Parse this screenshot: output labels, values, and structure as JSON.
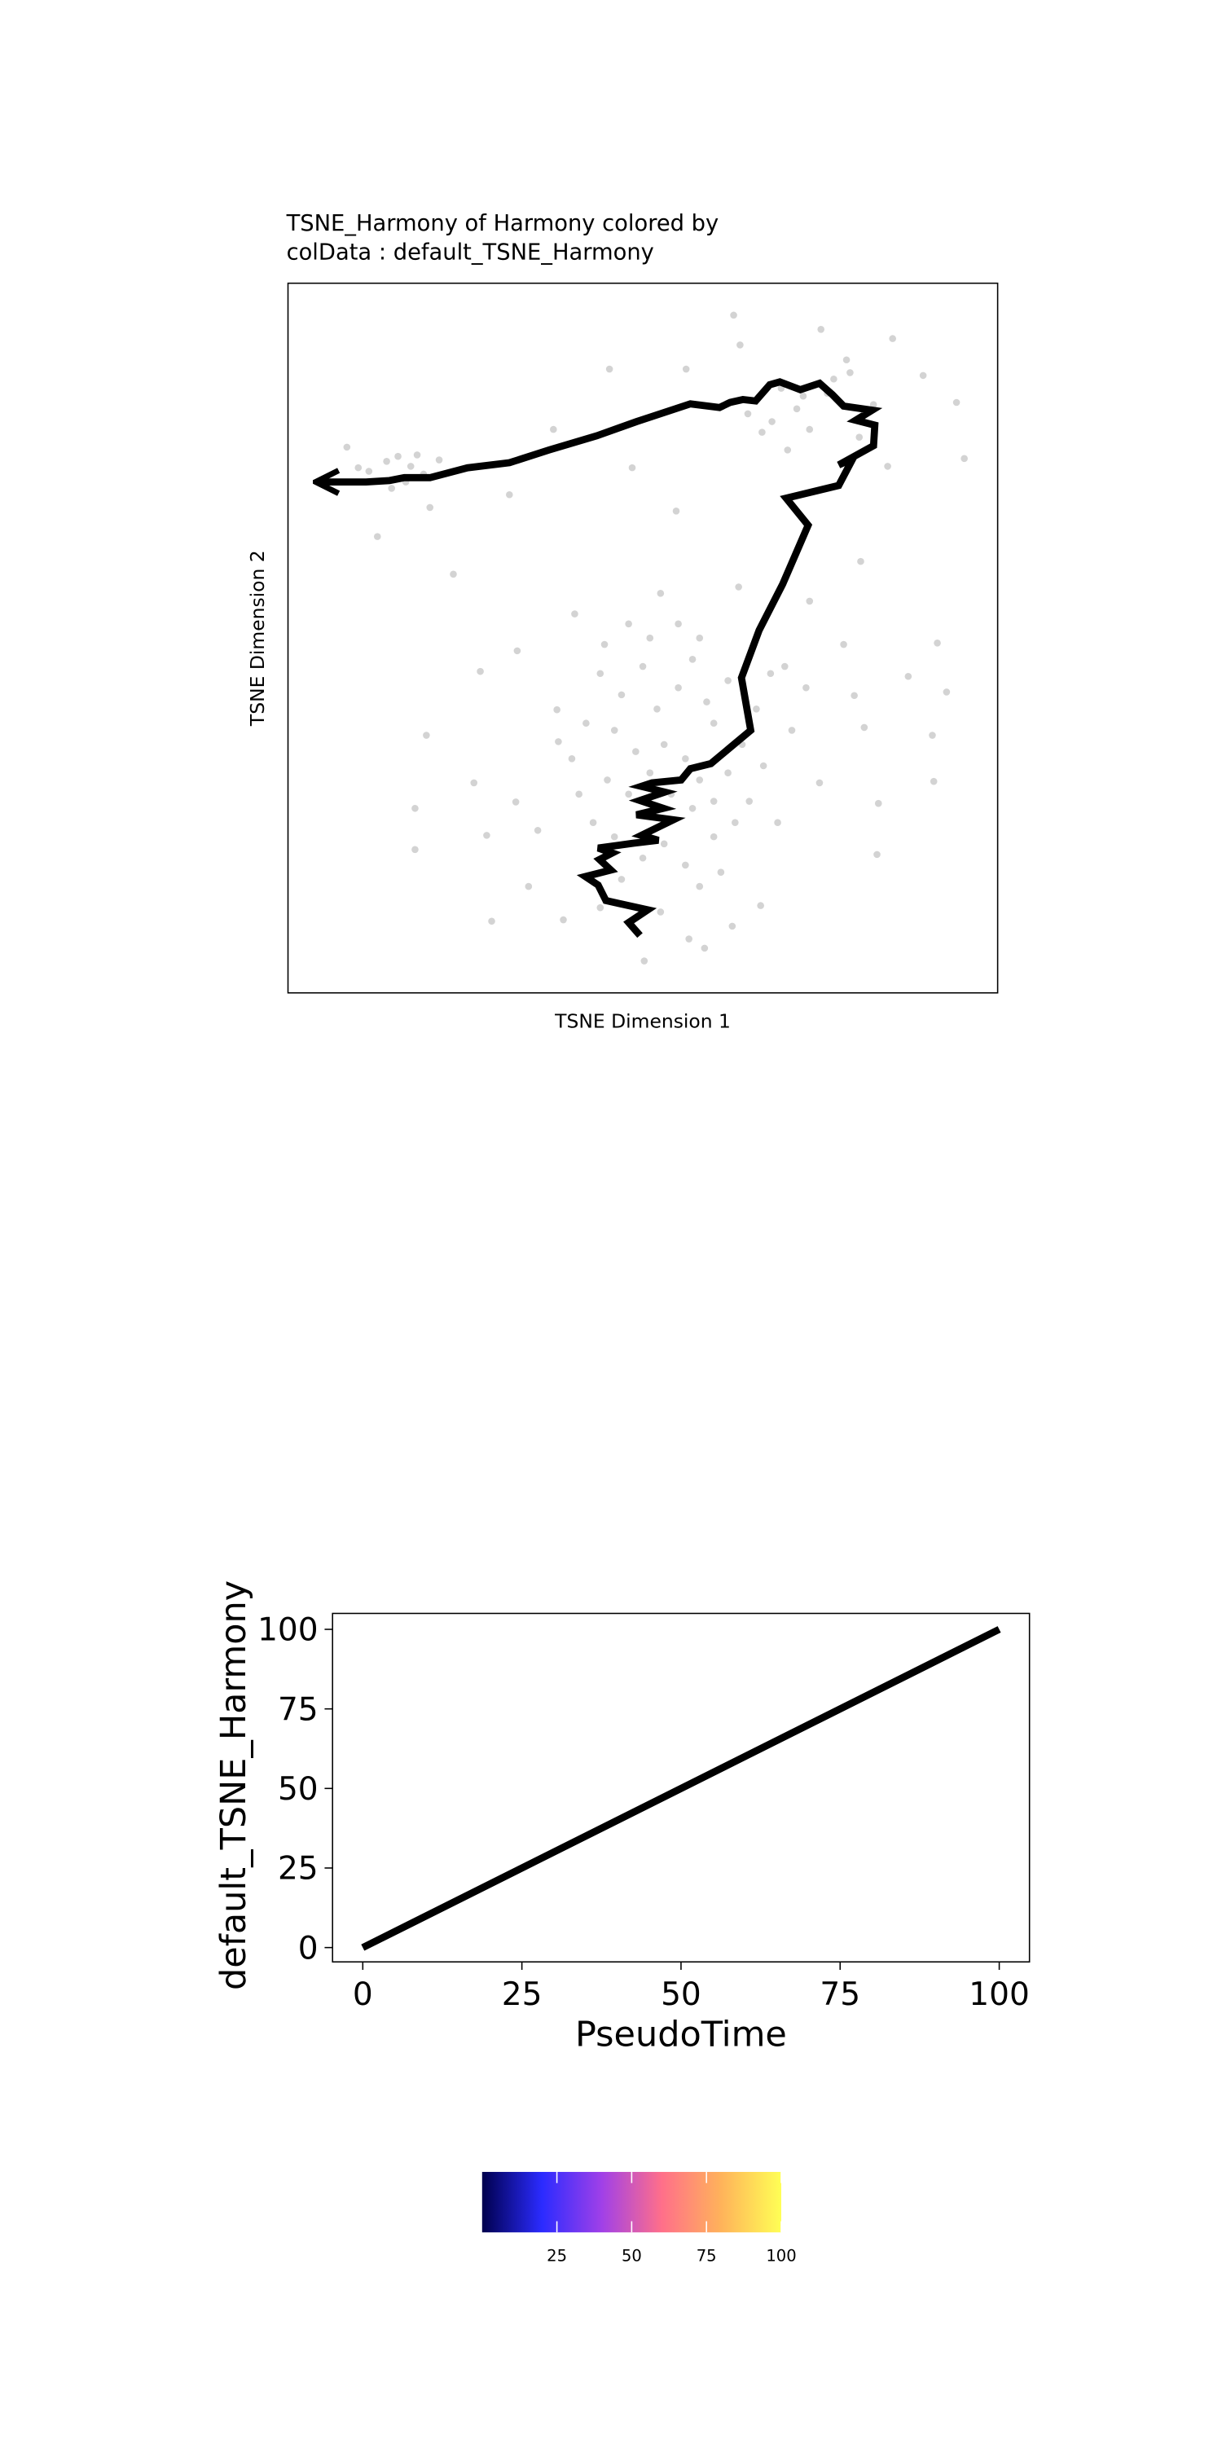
{
  "chart_data": [
    {
      "type": "scatter",
      "title_lines": [
        "TSNE_Harmony of Harmony  colored by",
        "colData :  default_TSNE_Harmony"
      ],
      "x_label": "TSNE Dimension 1",
      "y_label": "TSNE Dimension 2",
      "xlim": [
        0,
        100
      ],
      "ylim": [
        0,
        100
      ],
      "point_color": "#d3d3d3",
      "line_color": "#000000",
      "x": [
        8.3,
        11.4,
        13.9,
        15.5,
        17.3,
        18.2,
        19.1,
        20.0,
        21.3,
        12.6,
        14.6,
        16.6,
        9.9,
        62.8,
        75.1,
        85.2,
        45.3,
        56.1,
        63.7,
        78.7,
        89.5,
        94.2,
        95.3,
        84.5,
        37.4,
        48.5,
        54.7,
        31.2,
        70.4,
        73.5,
        68.2,
        71.7,
        76.0,
        80.5,
        76.9,
        64.8,
        72.6,
        69.5,
        66.8,
        79.2,
        82.5,
        23.3,
        80.7,
        63.5,
        73.5,
        40.4,
        52.5,
        32.3,
        44.6,
        91.5,
        78.3,
        87.4,
        92.8,
        27.1,
        79.8,
        37.9,
        19.5,
        38.1,
        90.8,
        81.2,
        26.2,
        32.1,
        17.9,
        17.9,
        28.0,
        35.2,
        91.0,
        83.2,
        83.0,
        74.9,
        33.9,
        28.7,
        38.8,
        52.5,
        56.5,
        50.2,
        58.7,
        62.6,
        66.6,
        44,
        47,
        50,
        52,
        55,
        57,
        59,
        60,
        62,
        46,
        49,
        53,
        56,
        58,
        45,
        48,
        51,
        54,
        57,
        60,
        62,
        64,
        66,
        68,
        41,
        43,
        40,
        42,
        46,
        50,
        53,
        56,
        60,
        63,
        58,
        47,
        44,
        61,
        65,
        67,
        69,
        71,
        73,
        70,
        55,
        58,
        51,
        48
      ],
      "y": [
        76.9,
        73.5,
        74.9,
        75.6,
        74.2,
        75.8,
        73.1,
        68.4,
        75.1,
        64.3,
        71.1,
        72.0,
        74.0,
        95.5,
        93.5,
        92.2,
        87.9,
        87.9,
        91.3,
        89.2,
        87.0,
        83.2,
        75.3,
        74.2,
        79.4,
        74.0,
        67.9,
        70.2,
        76.5,
        79.4,
        80.5,
        82.3,
        84.5,
        78.3,
        86.5,
        81.6,
        84.1,
        85.2,
        79.0,
        87.4,
        82.9,
        59.0,
        60.8,
        57.2,
        55.2,
        53.4,
        56.3,
        48.2,
        49.1,
        49.3,
        49.1,
        44.6,
        42.4,
        45.3,
        41.9,
        39.9,
        36.3,
        35.4,
        36.3,
        37.4,
        29.6,
        26.9,
        26.0,
        20.2,
        22.2,
        22.9,
        29.8,
        26.7,
        19.5,
        29.6,
        15.0,
        10.1,
        10.3,
        11.4,
        7.6,
        4.5,
        6.3,
        9.4,
        12.3,
        45,
        42,
        46,
        40,
        43,
        47,
        41,
        38,
        44,
        37,
        34,
        35,
        33,
        30,
        30,
        28,
        31,
        28,
        26,
        27,
        31,
        35,
        40,
        45,
        28,
        24,
        33,
        38,
        22,
        19,
        21,
        18,
        22,
        24,
        15,
        16,
        12,
        17,
        27,
        32,
        24,
        37,
        43,
        46,
        52,
        50,
        50,
        52
      ],
      "trajectory": {
        "x": [
          49.6,
          48.0,
          50.7,
          44.8,
          43.7,
          41.9,
          45.5,
          43.9,
          45.7,
          43.7,
          48.7,
          52.2,
          49.8,
          54.3,
          49.1,
          52.9,
          49.6,
          53.1,
          49.8,
          51.3,
          55.4,
          56.7,
          59.6,
          65.2,
          63.9,
          66.4,
          69.7,
          73.3,
          70.2,
          77.6,
          79.6,
          77.6,
          82.5,
          82.7,
          80.0,
          82.3,
          78.3,
          76.7,
          74.9,
          72.2,
          69.3,
          67.9,
          65.9,
          64.1,
          62.3,
          60.8,
          56.7,
          49.1,
          43.5,
          36.8,
          31.2,
          25.3,
          20.0,
          16.4,
          14.3,
          11.0,
          4.3
        ],
        "y": [
          8.1,
          9.9,
          11.7,
          13.0,
          15.2,
          16.4,
          17.3,
          18.8,
          19.7,
          20.4,
          21.1,
          21.5,
          22.2,
          24.4,
          25.1,
          26.0,
          27.1,
          28.3,
          29.1,
          29.6,
          30.0,
          31.6,
          32.3,
          37.0,
          44.4,
          51.1,
          57.6,
          65.9,
          69.7,
          71.5,
          75.3,
          74.4,
          77.1,
          80.0,
          80.7,
          82.1,
          82.7,
          84.3,
          85.9,
          85.0,
          86.1,
          85.7,
          83.4,
          83.6,
          83.2,
          82.5,
          83.0,
          80.5,
          78.5,
          76.5,
          74.7,
          74.0,
          72.6,
          72.6,
          72.2,
          72.0,
          72.0
        ]
      }
    },
    {
      "type": "line",
      "x_label": "PseudoTime",
      "y_label": "default_TSNE_Harmony",
      "xlim": [
        -4.75,
        104.75
      ],
      "ylim": [
        -4.5,
        105
      ],
      "xticks": [
        0,
        25,
        50,
        75,
        100
      ],
      "yticks": [
        0,
        25,
        50,
        75,
        100
      ],
      "color": "#000000",
      "x": [
        0,
        100
      ],
      "y": [
        0,
        100
      ]
    },
    {
      "type": "colorbar",
      "xlim": [
        0,
        100
      ],
      "xticks": [
        25,
        50,
        75,
        100
      ],
      "colors": [
        "#00004d",
        "#2b2bff",
        "#a040e8",
        "#ff6f8a",
        "#ffb35a",
        "#ffff55"
      ]
    }
  ]
}
